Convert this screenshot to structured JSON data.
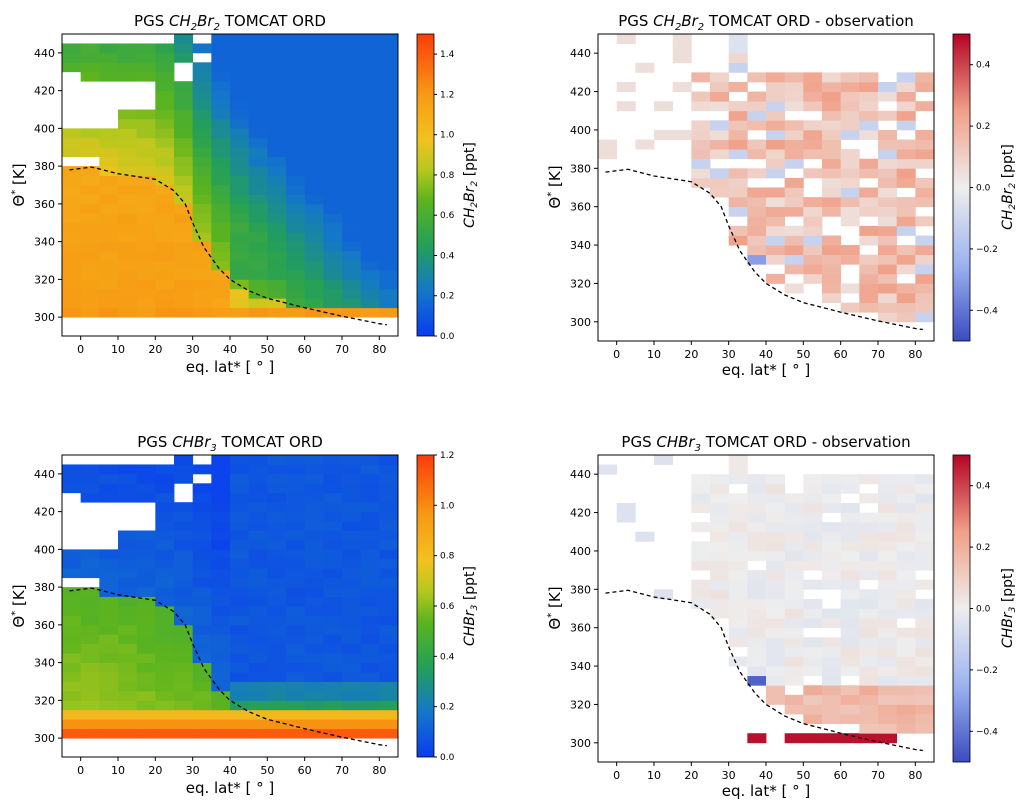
{
  "figure": {
    "panels": [
      {
        "title_prefix": "PGS ",
        "title_species": "CH",
        "title_sub1": "2",
        "title_mid": "Br",
        "title_sub2": "2",
        "title_suffix": " TOMCAT ORD",
        "xlabel": "eq. lat* [ ° ]",
        "ylabel_main": "Θ",
        "ylabel_sup": "*",
        "ylabel_unit": " [K]",
        "cbar_label_species": "CH",
        "cbar_sub1": "2",
        "cbar_mid": "Br",
        "cbar_sub2": "2",
        "cbar_unit": " [ppt]"
      },
      {
        "title_prefix": "PGS ",
        "title_species": "CH",
        "title_sub1": "2",
        "title_mid": "Br",
        "title_sub2": "2",
        "title_suffix": " TOMCAT ORD - observation",
        "xlabel": "eq. lat* [ ° ]",
        "ylabel_main": "Θ",
        "ylabel_sup": "*",
        "ylabel_unit": " [K]",
        "cbar_label_species": "CH",
        "cbar_sub1": "2",
        "cbar_mid": "Br",
        "cbar_sub2": "2",
        "cbar_unit": " [ppt]"
      },
      {
        "title_prefix": "PGS ",
        "title_species": "CHBr",
        "title_sub1": "3",
        "title_mid": "",
        "title_sub2": "",
        "title_suffix": " TOMCAT ORD",
        "xlabel": "eq. lat* [ ° ]",
        "ylabel_main": "Θ",
        "ylabel_sup": "*",
        "ylabel_unit": " [K]",
        "cbar_label_species": "CHBr",
        "cbar_sub1": "3",
        "cbar_mid": "",
        "cbar_sub2": "",
        "cbar_unit": " [ppt]"
      },
      {
        "title_prefix": "PGS ",
        "title_species": "CHBr",
        "title_sub1": "3",
        "title_mid": "",
        "title_sub2": "",
        "title_suffix": " TOMCAT ORD - observation",
        "xlabel": "eq. lat* [ ° ]",
        "ylabel_main": "Θ",
        "ylabel_sup": "*",
        "ylabel_unit": " [K]",
        "cbar_label_species": "CHBr",
        "cbar_sub1": "3",
        "cbar_mid": "",
        "cbar_sub2": "",
        "cbar_unit": " [ppt]"
      }
    ]
  },
  "chart_data": [
    {
      "type": "heatmap",
      "title": "PGS CH2Br2 TOMCAT ORD",
      "xlabel": "eq. lat* [ ° ]",
      "ylabel": "Θ* [K]",
      "xlim": [
        -5,
        85
      ],
      "ylim": [
        290,
        450
      ],
      "xticks": [
        0,
        10,
        20,
        30,
        40,
        50,
        60,
        70,
        80
      ],
      "yticks": [
        300,
        320,
        340,
        360,
        380,
        400,
        420,
        440
      ],
      "grid": false,
      "colorbar": {
        "label": "CH2Br2 [ppt]",
        "range": [
          0.0,
          1.5
        ],
        "ticks": [
          0.0,
          0.2,
          0.4,
          0.6,
          0.8,
          1.0,
          1.2,
          1.4
        ],
        "colormap": "rainbow"
      },
      "field_description": "values ~1.1-1.2 ppt in tropics below 380 K decreasing to ~0.3 ppt at high latitude and altitude; white gaps at 400-430 K near 0-20 deg",
      "dashed_line": {
        "x": [
          -3,
          3,
          10,
          20,
          25,
          28,
          30,
          33,
          37,
          40,
          45,
          50,
          60,
          70,
          80,
          82
        ],
        "y": [
          378,
          379.5,
          376,
          373,
          367,
          360,
          350,
          337,
          326,
          320,
          314,
          310,
          305,
          300.5,
          296.5,
          296
        ]
      }
    },
    {
      "type": "heatmap",
      "title": "PGS CH2Br2 TOMCAT ORD - observation",
      "xlabel": "eq. lat* [ ° ]",
      "ylabel": "Θ* [K]",
      "xlim": [
        -5,
        85
      ],
      "ylim": [
        290,
        450
      ],
      "xticks": [
        0,
        10,
        20,
        30,
        40,
        50,
        60,
        70,
        80
      ],
      "yticks": [
        300,
        320,
        340,
        360,
        380,
        400,
        420,
        440
      ],
      "grid": false,
      "colorbar": {
        "label": "CH2Br2 [ppt]",
        "range": [
          -0.5,
          0.5
        ],
        "ticks": [
          -0.4,
          -0.2,
          0.0,
          0.2,
          0.4
        ],
        "colormap": "coolwarm"
      },
      "field_description": "mostly small positive differences (~0.1-0.2 ppt) between 20-85 deg, 300-440 K; few negative cells",
      "dashed_line": {
        "x": [
          -3,
          3,
          10,
          20,
          25,
          28,
          30,
          33,
          37,
          40,
          45,
          50,
          60,
          70,
          80,
          82
        ],
        "y": [
          378,
          379.5,
          376,
          373,
          367,
          360,
          350,
          337,
          326,
          320,
          314,
          310,
          305,
          300.5,
          296.5,
          296
        ]
      }
    },
    {
      "type": "heatmap",
      "title": "PGS CHBr3 TOMCAT ORD",
      "xlabel": "eq. lat* [ ° ]",
      "ylabel": "Θ* [K]",
      "xlim": [
        -5,
        85
      ],
      "ylim": [
        290,
        450
      ],
      "xticks": [
        0,
        10,
        20,
        30,
        40,
        50,
        60,
        70,
        80
      ],
      "yticks": [
        300,
        320,
        340,
        360,
        380,
        400,
        420,
        440
      ],
      "grid": false,
      "colorbar": {
        "label": "CHBr3 [ppt]",
        "range": [
          0.0,
          1.2
        ],
        "ticks": [
          0.0,
          0.2,
          0.4,
          0.6,
          0.8,
          1.0,
          1.2
        ],
        "colormap": "rainbow"
      },
      "field_description": "high values (~1.0-1.1 ppt) at 300-310 K, ~0.5-0.7 ppt in tropics 320-370 K, near 0 above 380 K and poleward of 40 deg",
      "dashed_line": {
        "x": [
          -3,
          3,
          10,
          20,
          25,
          28,
          30,
          33,
          37,
          40,
          45,
          50,
          60,
          70,
          80,
          82
        ],
        "y": [
          378,
          379.5,
          376,
          373,
          367,
          360,
          350,
          337,
          326,
          320,
          314,
          310,
          305,
          300.5,
          296.5,
          296
        ]
      }
    },
    {
      "type": "heatmap",
      "title": "PGS CHBr3 TOMCAT ORD - observation",
      "xlabel": "eq. lat* [ ° ]",
      "ylabel": "Θ* [K]",
      "xlim": [
        -5,
        85
      ],
      "ylim": [
        290,
        450
      ],
      "xticks": [
        0,
        10,
        20,
        30,
        40,
        50,
        60,
        70,
        80
      ],
      "yticks": [
        300,
        320,
        340,
        360,
        380,
        400,
        420,
        440
      ],
      "grid": false,
      "colorbar": {
        "label": "CHBr3 [ppt]",
        "range": [
          -0.5,
          0.5
        ],
        "ticks": [
          -0.4,
          -0.2,
          0.0,
          0.2,
          0.4
        ],
        "colormap": "coolwarm"
      },
      "field_description": "near-zero differences above 330 K; positive (~0.1-0.2 ppt) between 305-330 K; strong positive (~0.5 ppt) at ~302 K, 35-75 deg; one strong negative cell at ~335 K, 35 deg",
      "dashed_line": {
        "x": [
          -3,
          3,
          10,
          20,
          25,
          28,
          30,
          33,
          37,
          40,
          45,
          50,
          60,
          70,
          80,
          82
        ],
        "y": [
          378,
          379.5,
          376,
          373,
          367,
          360,
          350,
          337,
          326,
          320,
          314,
          310,
          305,
          300.5,
          296.5,
          296
        ]
      }
    }
  ]
}
